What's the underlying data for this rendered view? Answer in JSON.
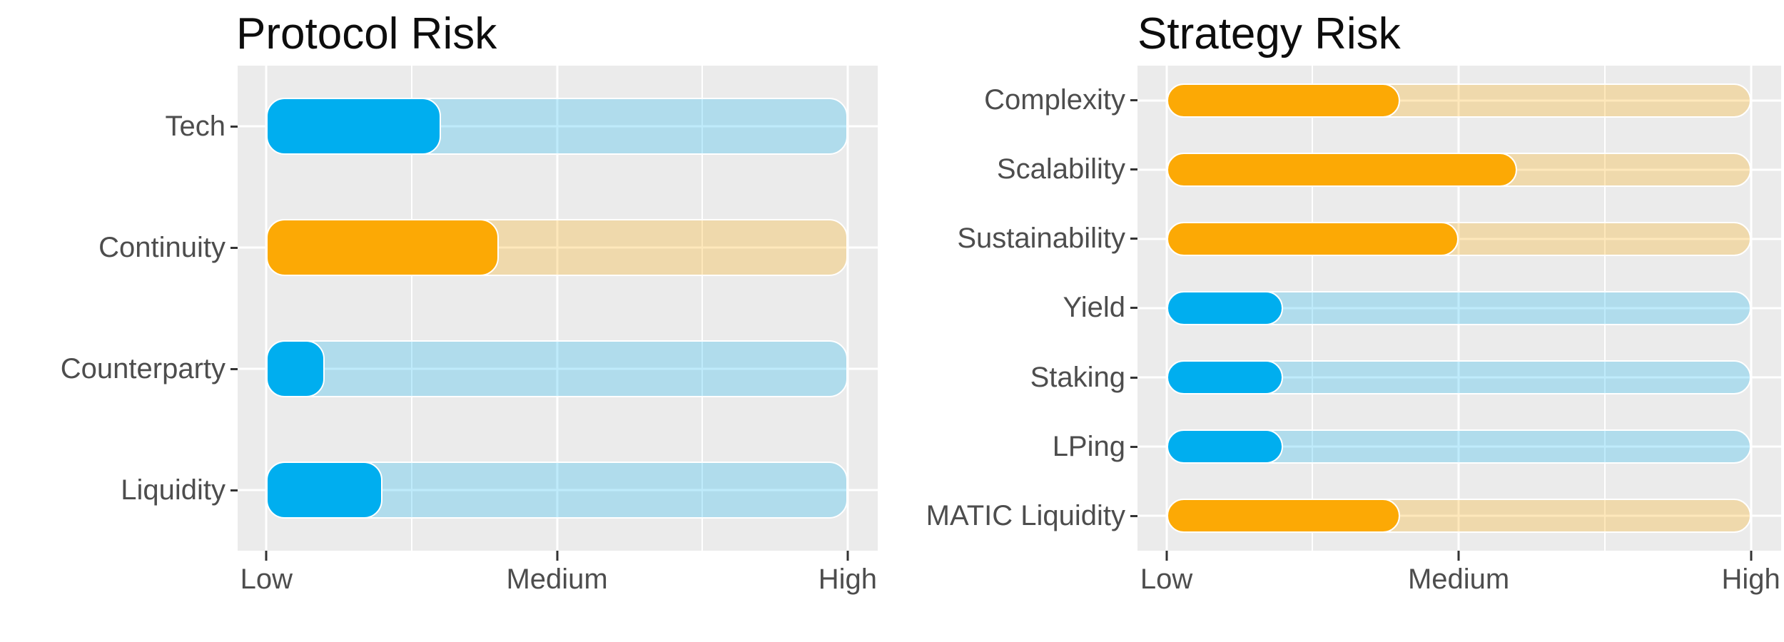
{
  "colors": {
    "blue": "#00AEEF",
    "blue_track": "rgba(0,174,239,0.25)",
    "orange": "#FCA905",
    "orange_track": "rgba(252,169,5,0.27)",
    "panel_background": "#EBEBEB",
    "gridline": "#FFFFFF",
    "axis_text": "#4D4D4D",
    "title_text": "#0D0D0D",
    "tick_mark": "#333333"
  },
  "chart_data": [
    {
      "type": "bar",
      "orientation": "horizontal",
      "title": "Protocol Risk",
      "categories": [
        "Tech",
        "Continuity",
        "Counterparty",
        "Liquidity"
      ],
      "values": [
        3,
        4,
        1,
        2
      ],
      "bar_colors": [
        "blue",
        "orange",
        "blue",
        "blue"
      ],
      "track_value": 10,
      "x_range": [
        0,
        10
      ],
      "x_tick_values": [
        0,
        5,
        10
      ],
      "x_tick_labels": [
        "Low",
        "Medium",
        "High"
      ],
      "grid": true,
      "legend": false
    },
    {
      "type": "bar",
      "orientation": "horizontal",
      "title": "Strategy Risk",
      "categories": [
        "Complexity",
        "Scalability",
        "Sustainability",
        "Yield",
        "Staking",
        "LPing",
        "MATIC Liquidity"
      ],
      "values": [
        4,
        6,
        5,
        2,
        2,
        2,
        4
      ],
      "bar_colors": [
        "orange",
        "orange",
        "orange",
        "blue",
        "blue",
        "blue",
        "orange"
      ],
      "track_value": 10,
      "x_range": [
        0,
        10
      ],
      "x_tick_values": [
        0,
        5,
        10
      ],
      "x_tick_labels": [
        "Low",
        "Medium",
        "High"
      ],
      "grid": true,
      "legend": false
    }
  ]
}
